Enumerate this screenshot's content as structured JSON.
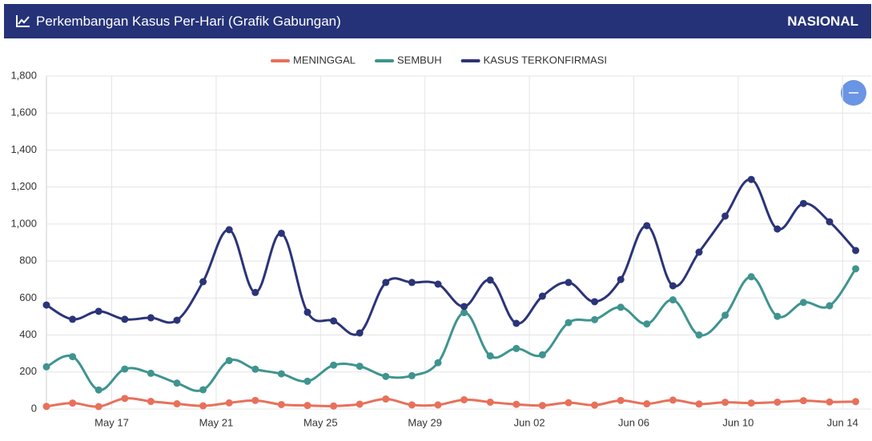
{
  "header": {
    "title": "Perkembangan Kasus Per-Hari (Grafik Gabungan)",
    "badge": "NASIONAL"
  },
  "chart_data": {
    "type": "line",
    "categories": [
      null,
      null,
      null,
      "May 17",
      null,
      null,
      null,
      "May 21",
      null,
      null,
      null,
      "May 25",
      null,
      null,
      null,
      "May 29",
      null,
      null,
      null,
      "Jun 02",
      null,
      null,
      null,
      "Jun 06",
      null,
      null,
      null,
      "Jun 10",
      null,
      null,
      null,
      "Jun 14"
    ],
    "series": [
      {
        "name": "MENINGGAL",
        "color": "#e8705a",
        "values": [
          14,
          32,
          13,
          57,
          41,
          28,
          17,
          33,
          46,
          24,
          19,
          16,
          26,
          54,
          22,
          22,
          50,
          37,
          25,
          19,
          34,
          21,
          46,
          28,
          48,
          27,
          36,
          32,
          37,
          45,
          38,
          40
        ]
      },
      {
        "name": "SEMBUH",
        "color": "#3f948f",
        "values": [
          228,
          283,
          103,
          216,
          193,
          140,
          104,
          262,
          215,
          190,
          150,
          237,
          231,
          176,
          180,
          250,
          521,
          287,
          327,
          293,
          467,
          483,
          550,
          460,
          590,
          400,
          507,
          715,
          501,
          576,
          558,
          758
        ]
      },
      {
        "name": "KASUS TERKONFIRMASI",
        "color": "#2b3478",
        "values": [
          562,
          485,
          528,
          485,
          493,
          480,
          688,
          969,
          630,
          950,
          523,
          476,
          411,
          684,
          684,
          675,
          554,
          697,
          463,
          610,
          684,
          580,
          700,
          991,
          666,
          848,
          1043,
          1241,
          973,
          1111,
          1012,
          857
        ]
      }
    ],
    "ylim": [
      0,
      1800
    ],
    "yticks": [
      0,
      200,
      400,
      600,
      800,
      {
        "value": 1000,
        "label": "1,000"
      },
      {
        "value": 1200,
        "label": "1,200"
      },
      {
        "value": 1400,
        "label": "1,400"
      },
      {
        "value": 1600,
        "label": "1,600"
      },
      {
        "value": 1800,
        "label": "1,800"
      }
    ],
    "grid": true,
    "legend": "top"
  }
}
